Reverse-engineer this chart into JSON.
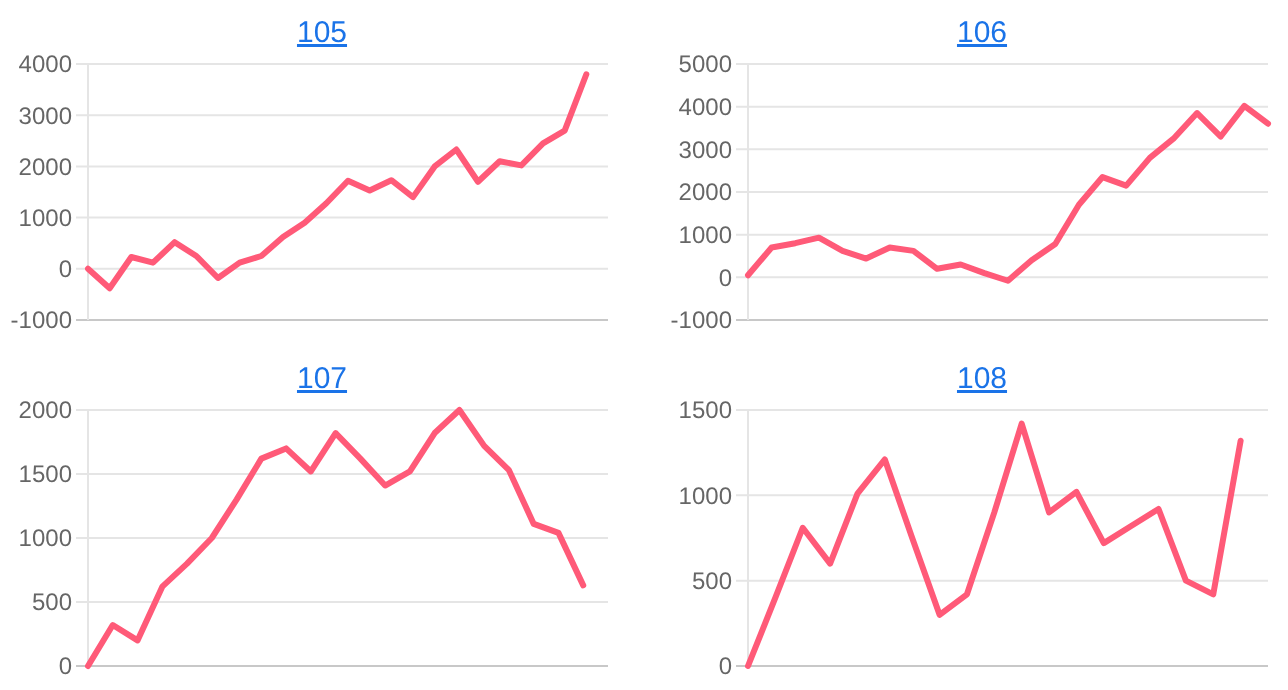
{
  "chart_data": [
    {
      "type": "line",
      "title": "105",
      "categories": [
        null,
        null,
        null,
        null,
        null,
        null,
        null,
        null,
        null,
        null,
        null,
        null,
        null,
        null,
        null,
        null,
        null,
        null,
        null,
        null,
        null,
        null,
        null,
        null,
        null
      ],
      "values": [
        0,
        -380,
        230,
        120,
        520,
        250,
        -180,
        120,
        250,
        620,
        900,
        1280,
        1720,
        1530,
        1730,
        1400,
        2000,
        2330,
        1700,
        2100,
        2020,
        2450,
        2700,
        3800,
        null
      ],
      "color": "#ff5a78",
      "ylim": [
        -1000,
        4000
      ],
      "yticks": [
        -1000,
        0,
        1000,
        2000,
        3000,
        4000
      ],
      "grid": "y",
      "tick_labels": "y"
    },
    {
      "type": "line",
      "title": "106",
      "categories": [
        null,
        null,
        null,
        null,
        null,
        null,
        null,
        null,
        null,
        null,
        null,
        null,
        null,
        null,
        null,
        null,
        null,
        null,
        null,
        null,
        null,
        null,
        null
      ],
      "values": [
        50,
        700,
        800,
        930,
        620,
        440,
        700,
        620,
        200,
        300,
        100,
        -80,
        400,
        780,
        1700,
        2350,
        2150,
        2800,
        3250,
        3850,
        3300,
        4020,
        3600
      ],
      "color": "#ff5a78",
      "ylim": [
        -1000,
        5000
      ],
      "yticks": [
        -1000,
        0,
        1000,
        2000,
        3000,
        4000,
        5000
      ],
      "grid": "y",
      "tick_labels": "y"
    },
    {
      "type": "line",
      "title": "107",
      "categories": [
        null,
        null,
        null,
        null,
        null,
        null,
        null,
        null,
        null,
        null,
        null,
        null,
        null,
        null,
        null,
        null,
        null,
        null,
        null,
        null,
        null,
        null
      ],
      "values": [
        0,
        320,
        200,
        620,
        800,
        1000,
        1300,
        1620,
        1700,
        1520,
        1820,
        1620,
        1410,
        1520,
        1820,
        2000,
        1720,
        1530,
        1110,
        1040,
        630,
        null
      ],
      "color": "#ff5a78",
      "ylim": [
        0,
        2000
      ],
      "yticks": [
        0,
        500,
        1000,
        1500,
        2000
      ],
      "grid": "y",
      "tick_labels": "y"
    },
    {
      "type": "line",
      "title": "108",
      "categories": [
        null,
        null,
        null,
        null,
        null,
        null,
        null,
        null,
        null,
        null,
        null,
        null,
        null,
        null,
        null,
        null,
        null,
        null,
        null,
        null
      ],
      "values": [
        0,
        400,
        810,
        600,
        1010,
        1210,
        750,
        300,
        420,
        900,
        1420,
        900,
        1020,
        720,
        820,
        920,
        500,
        420,
        1320,
        null
      ],
      "color": "#ff5a78",
      "ylim": [
        0,
        1500
      ],
      "yticks": [
        0,
        500,
        1000,
        1500
      ],
      "grid": "y",
      "tick_labels": "y"
    }
  ]
}
